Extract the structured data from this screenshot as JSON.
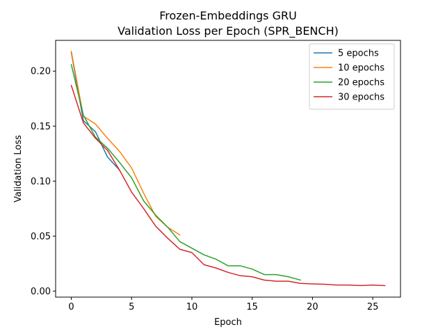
{
  "chart_data": {
    "type": "line",
    "title": "Frozen-Embeddings GRU",
    "subtitle": "Validation Loss per Epoch (SPR_BENCH)",
    "xlabel": "Epoch",
    "ylabel": "Validation Loss",
    "xlim": [
      -1.3,
      27.3
    ],
    "ylim": [
      -0.0055,
      0.228
    ],
    "xticks": [
      0,
      5,
      10,
      15,
      20,
      25
    ],
    "xtick_labels": [
      "0",
      "5",
      "10",
      "15",
      "20",
      "25"
    ],
    "yticks": [
      0.0,
      0.05,
      0.1,
      0.15,
      0.2
    ],
    "ytick_labels": [
      "0.00",
      "0.05",
      "0.10",
      "0.15",
      "0.20"
    ],
    "grid": false,
    "legend_position": "top-right",
    "series": [
      {
        "name": "5 epochs",
        "color": "#1f77b4",
        "x": [
          0,
          1,
          2,
          3,
          4
        ],
        "y": [
          0.217,
          0.155,
          0.145,
          0.122,
          0.11
        ]
      },
      {
        "name": "10 epochs",
        "color": "#ff7f0e",
        "x": [
          0,
          1,
          2,
          3,
          4,
          5,
          6,
          7,
          8,
          9
        ],
        "y": [
          0.218,
          0.159,
          0.152,
          0.139,
          0.127,
          0.112,
          0.089,
          0.068,
          0.058,
          0.051
        ]
      },
      {
        "name": "20 epochs",
        "color": "#2ca02c",
        "x": [
          0,
          1,
          2,
          3,
          4,
          5,
          6,
          7,
          8,
          9,
          10,
          11,
          12,
          13,
          14,
          15,
          16,
          17,
          18,
          19
        ],
        "y": [
          0.206,
          0.16,
          0.14,
          0.13,
          0.117,
          0.103,
          0.082,
          0.069,
          0.058,
          0.045,
          0.039,
          0.033,
          0.029,
          0.023,
          0.023,
          0.02,
          0.015,
          0.015,
          0.013,
          0.01
        ]
      },
      {
        "name": "30 epochs",
        "color": "#d62728",
        "x": [
          0,
          1,
          2,
          3,
          4,
          5,
          6,
          7,
          8,
          9,
          10,
          11,
          12,
          13,
          14,
          15,
          16,
          17,
          18,
          19,
          20,
          21,
          22,
          23,
          24,
          25,
          26
        ],
        "y": [
          0.187,
          0.153,
          0.139,
          0.128,
          0.11,
          0.09,
          0.075,
          0.059,
          0.048,
          0.038,
          0.035,
          0.024,
          0.021,
          0.017,
          0.014,
          0.013,
          0.01,
          0.009,
          0.009,
          0.007,
          0.0065,
          0.0062,
          0.0055,
          0.0055,
          0.005,
          0.0055,
          0.005
        ]
      }
    ]
  }
}
